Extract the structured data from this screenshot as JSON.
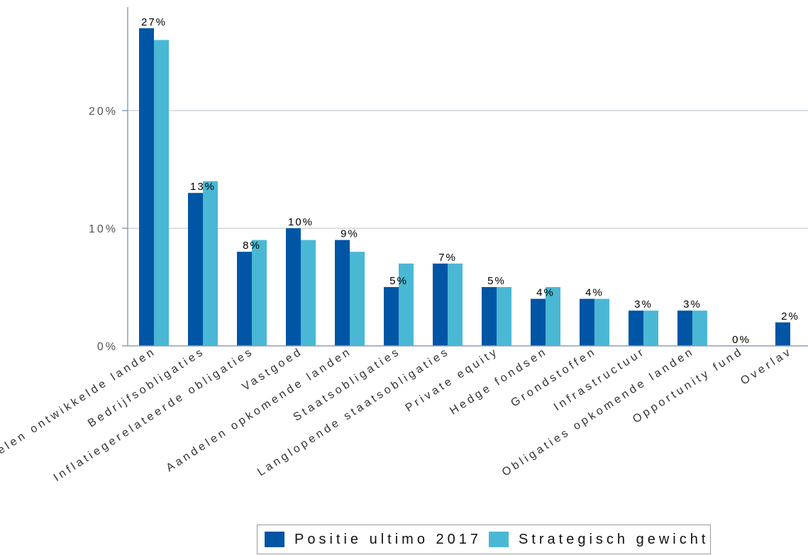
{
  "chart_data": {
    "type": "bar",
    "title": "",
    "xlabel": "",
    "ylabel": "",
    "ylim": [
      0,
      28
    ],
    "yticks": [
      0,
      10,
      20
    ],
    "ytick_labels": [
      "0%",
      "10%",
      "20%"
    ],
    "grid": true,
    "legend_position": "bottom",
    "categories": [
      "Aandelen ontwikkelde landen",
      "Bedrijfsobligaties",
      "Inflatiegerelateerde obligaties",
      "Vastgoed",
      "Aandelen opkomende landen",
      "Staatsobligaties",
      "Langlopende staatsobligaties",
      "Private equity",
      "Hedge fondsen",
      "Grondstoffen",
      "Infrastructuur",
      "Obligaties opkomende landen",
      "Opportunity fund",
      "Overlav"
    ],
    "series": [
      {
        "name": "Positie ultimo 2017",
        "color": "#0055a5",
        "values": [
          27,
          13,
          8,
          10,
          9,
          5,
          7,
          5,
          4,
          4,
          3,
          3,
          0,
          2
        ],
        "data_labels": [
          "27%",
          "13%",
          "8%",
          "10%",
          "9%",
          "5%",
          "7%",
          "5%",
          "4%",
          "4%",
          "3%",
          "3%",
          "0%",
          "2%"
        ]
      },
      {
        "name": "Strategisch gewicht",
        "color": "#4ab8d4",
        "values": [
          26,
          14,
          9,
          9,
          8,
          7,
          7,
          5,
          5,
          4,
          3,
          3,
          0,
          null
        ]
      }
    ]
  }
}
